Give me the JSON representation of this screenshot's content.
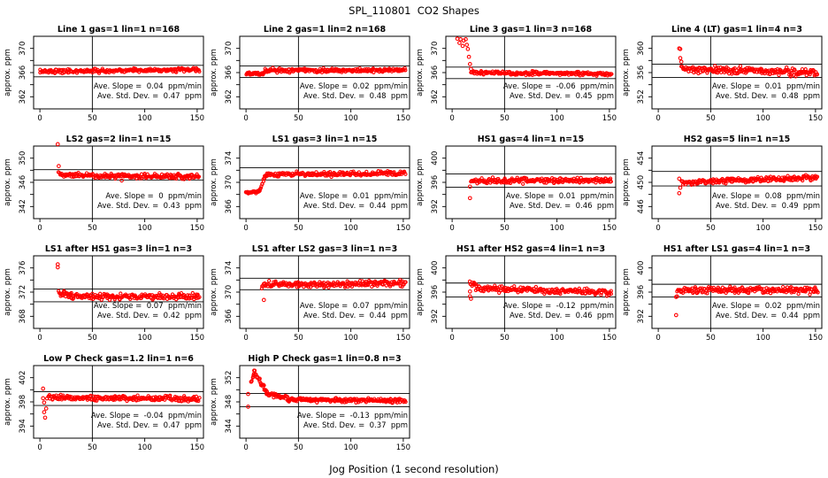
{
  "chart_data": {
    "type": "scatter",
    "title": "SPL_110801  CO2 Shapes",
    "xlabel": "Jog Position (1 second resolution)",
    "ylabel": "approx. ppm",
    "marker_color": "#ff0000",
    "axis_color": "#000000",
    "grid": false,
    "xticks": [
      0,
      50,
      100,
      150
    ],
    "xlim": [
      -6,
      156
    ],
    "vline_x": 50,
    "panels": [
      {
        "title": "Line 1 gas=1 lin=1 n=168",
        "yticks": [
          362,
          366,
          370
        ],
        "ylim": [
          360,
          372
        ],
        "hlines": [
          367.2,
          365.3
        ],
        "baseline_ppm": 366.3,
        "slope_ppm_per_min": 0.04,
        "std_dev_ppm": 0.47,
        "annotations": [
          "Ave. Slope =  0.04  ppm/min",
          "Ave. Std. Dev. =  0.47  ppm"
        ],
        "segments": [
          [
            0,
            152,
            366.2,
            366.45,
            230,
            0.22
          ]
        ],
        "outliers": []
      },
      {
        "title": "Line 2 gas=1 lin=2 n=168",
        "yticks": [
          362,
          366,
          370
        ],
        "ylim": [
          360,
          372
        ],
        "hlines": [
          367.1,
          365.2
        ],
        "baseline_ppm": 366.3,
        "slope_ppm_per_min": 0.02,
        "std_dev_ppm": 0.48,
        "annotations": [
          "Ave. Slope =  0.02  ppm/min",
          "Ave. Std. Dev. =  0.48  ppm"
        ],
        "segments": [
          [
            0,
            18,
            365.8,
            365.9,
            34,
            0.2
          ],
          [
            18,
            152,
            366.35,
            366.4,
            215,
            0.22
          ]
        ],
        "outliers": []
      },
      {
        "title": "Line 3 gas=1 lin=3 n=168",
        "yticks": [
          362,
          366,
          370
        ],
        "ylim": [
          360,
          372
        ],
        "hlines": [
          366.9,
          365.0
        ],
        "baseline_ppm": 365.9,
        "slope_ppm_per_min": -0.06,
        "std_dev_ppm": 0.45,
        "annotations": [
          "Ave. Slope =  -0.06  ppm/min",
          "Ave. Std. Dev. =  0.45  ppm"
        ],
        "segments": [
          [
            18,
            152,
            366.0,
            365.8,
            220,
            0.2
          ]
        ],
        "outliers": [
          [
            5,
            371.6
          ],
          [
            7,
            370.9
          ],
          [
            8,
            371.5
          ],
          [
            10,
            370.4
          ],
          [
            11,
            371.3
          ],
          [
            13,
            371.5
          ],
          [
            14,
            370.6
          ],
          [
            15,
            369.9
          ],
          [
            16,
            368.6
          ],
          [
            17,
            367.4
          ],
          [
            18,
            366.6
          ]
        ]
      },
      {
        "title": "Line 4 (LT) gas=1 lin=4 n=3",
        "yticks": [
          352,
          356,
          360
        ],
        "ylim": [
          350,
          362
        ],
        "hlines": [
          357.4,
          355.2
        ],
        "baseline_ppm": 356.3,
        "slope_ppm_per_min": 0.01,
        "std_dev_ppm": 0.48,
        "annotations": [
          "Ave. Slope =  0.01  ppm/min",
          "Ave. Std. Dev. =  0.48  ppm"
        ],
        "segments": [
          [
            22,
            152,
            356.6,
            356.0,
            205,
            0.45
          ]
        ],
        "outliers": [
          [
            20,
            360.0
          ],
          [
            21,
            359.9
          ],
          [
            21,
            358.4
          ],
          [
            22,
            357.8
          ]
        ]
      },
      {
        "title": "LS2 gas=2 lin=1 n=15",
        "yticks": [
          342,
          346,
          350
        ],
        "ylim": [
          340,
          352
        ],
        "hlines": [
          348.1,
          346.4
        ],
        "baseline_ppm": 347.0,
        "slope_ppm_per_min": 0,
        "std_dev_ppm": 0.43,
        "annotations": [
          "Ave. Slope =  0  ppm/min",
          "Ave. Std. Dev. =  0.43  ppm"
        ],
        "segments": [
          [
            18,
            152,
            347.2,
            346.9,
            205,
            0.28
          ]
        ],
        "outliers": [
          [
            17,
            352.3
          ],
          [
            18,
            348.7
          ],
          [
            78,
            346.3
          ]
        ]
      },
      {
        "title": "LS1 gas=3 lin=1 n=15",
        "yticks": [
          366,
          370,
          374
        ],
        "ylim": [
          364,
          376
        ],
        "hlines": [
          372.4,
          370.4
        ],
        "baseline_ppm": 371.4,
        "slope_ppm_per_min": 0.01,
        "std_dev_ppm": 0.44,
        "annotations": [
          "Ave. Slope =  0.01  ppm/min",
          "Ave. Std. Dev. =  0.44  ppm"
        ],
        "segments": [
          [
            0,
            13,
            368.3,
            368.5,
            28,
            0.18
          ],
          [
            13,
            18,
            368.6,
            371.1,
            10,
            0.15
          ],
          [
            18,
            152,
            371.3,
            371.5,
            205,
            0.28
          ]
        ],
        "outliers": []
      },
      {
        "title": "HS1 gas=4 lin=1 n=15",
        "yticks": [
          392,
          396,
          400
        ],
        "ylim": [
          390,
          402
        ],
        "hlines": [
          397.4,
          395.2
        ],
        "baseline_ppm": 396.3,
        "slope_ppm_per_min": 0.01,
        "std_dev_ppm": 0.46,
        "annotations": [
          "Ave. Slope =  0.01  ppm/min",
          "Ave. Std. Dev. =  0.46  ppm"
        ],
        "segments": [
          [
            18,
            152,
            396.3,
            396.35,
            215,
            0.3
          ]
        ],
        "outliers": [
          [
            17,
            393.4
          ],
          [
            17,
            395.3
          ]
        ]
      },
      {
        "title": "HS2 gas=5 lin=1 n=15",
        "yticks": [
          446,
          450,
          454
        ],
        "ylim": [
          444,
          456
        ],
        "hlines": [
          451.8,
          449.4
        ],
        "baseline_ppm": 450.5,
        "slope_ppm_per_min": 0.08,
        "std_dev_ppm": 0.49,
        "annotations": [
          "Ave. Slope =  0.08  ppm/min",
          "Ave. Std. Dev. =  0.49  ppm"
        ],
        "segments": [
          [
            22,
            152,
            450.0,
            450.8,
            205,
            0.3
          ]
        ],
        "outliers": [
          [
            20,
            450.6
          ],
          [
            20,
            448.2
          ],
          [
            21,
            449.1
          ]
        ]
      },
      {
        "title": "LS1 after HS1 gas=3 lin=1 n=3",
        "yticks": [
          368,
          372,
          376
        ],
        "ylim": [
          366,
          378
        ],
        "hlines": [
          372.5,
          370.4
        ],
        "baseline_ppm": 371.3,
        "slope_ppm_per_min": 0.07,
        "std_dev_ppm": 0.42,
        "annotations": [
          "Ave. Slope =  0.07  ppm/min",
          "Ave. Std. Dev. =  0.42  ppm"
        ],
        "segments": [
          [
            18,
            30,
            371.8,
            371.3,
            25,
            0.4
          ],
          [
            30,
            152,
            371.3,
            371.2,
            185,
            0.35
          ]
        ],
        "outliers": [
          [
            17,
            376.6
          ],
          [
            17,
            376.1
          ]
        ]
      },
      {
        "title": "LS1 after LS2 gas=3 lin=1 n=3",
        "yticks": [
          366,
          370,
          374
        ],
        "ylim": [
          364,
          376
        ],
        "hlines": [
          372.3,
          370.4
        ],
        "baseline_ppm": 371.3,
        "slope_ppm_per_min": 0.07,
        "std_dev_ppm": 0.44,
        "annotations": [
          "Ave. Slope =  0.07  ppm/min",
          "Ave. Std. Dev. =  0.44  ppm"
        ],
        "segments": [
          [
            15,
            152,
            371.2,
            371.5,
            205,
            0.35
          ]
        ],
        "outliers": [
          [
            17,
            368.7
          ]
        ]
      },
      {
        "title": "HS1 after HS2 gas=4 lin=1 n=3",
        "yticks": [
          392,
          396,
          400
        ],
        "ylim": [
          390,
          402
        ],
        "hlines": [
          397.5,
          395.2
        ],
        "baseline_ppm": 396.3,
        "slope_ppm_per_min": -0.12,
        "std_dev_ppm": 0.46,
        "annotations": [
          "Ave. Slope =  -0.12  ppm/min",
          "Ave. Std. Dev. =  0.46  ppm"
        ],
        "segments": [
          [
            17,
            23,
            397.5,
            397.3,
            12,
            0.3
          ],
          [
            23,
            152,
            396.6,
            396.0,
            195,
            0.35
          ]
        ],
        "outliers": [
          [
            17,
            396.1
          ],
          [
            17,
            395.3
          ],
          [
            18,
            394.9
          ]
        ]
      },
      {
        "title": "HS1 after LS1 gas=4 lin=1 n=3",
        "yticks": [
          392,
          396,
          400
        ],
        "ylim": [
          390,
          402
        ],
        "hlines": [
          397.3,
          395.2
        ],
        "baseline_ppm": 396.3,
        "slope_ppm_per_min": 0.02,
        "std_dev_ppm": 0.44,
        "annotations": [
          "Ave. Slope =  0.02  ppm/min",
          "Ave. Std. Dev. =  0.44  ppm"
        ],
        "segments": [
          [
            18,
            152,
            396.3,
            396.35,
            205,
            0.4
          ]
        ],
        "outliers": [
          [
            17,
            392.2
          ],
          [
            17,
            395.2
          ],
          [
            18,
            395.3
          ]
        ]
      },
      {
        "title": "Low P Check gas=1.2 lin=1 n=6",
        "yticks": [
          394,
          398,
          402
        ],
        "ylim": [
          392,
          404
        ],
        "hlines": [
          399.7,
          397.4
        ],
        "baseline_ppm": 398.6,
        "slope_ppm_per_min": -0.04,
        "std_dev_ppm": 0.47,
        "annotations": [
          "Ave. Slope =  -0.04  ppm/min",
          "Ave. Std. Dev. =  0.47  ppm"
        ],
        "segments": [
          [
            7,
            152,
            398.7,
            398.5,
            215,
            0.3
          ]
        ],
        "outliers": [
          [
            3,
            400.2
          ],
          [
            3,
            398.6
          ],
          [
            4,
            397.9
          ],
          [
            4,
            396.3
          ],
          [
            5,
            395.4
          ],
          [
            6,
            396.9
          ]
        ]
      },
      {
        "title": "High P Check gas=1 lin=0.8 n=3",
        "yticks": [
          344,
          348,
          352
        ],
        "ylim": [
          342,
          354
        ],
        "hlines": [
          349.4,
          347.2
        ],
        "baseline_ppm": 348.3,
        "slope_ppm_per_min": -0.13,
        "std_dev_ppm": 0.37,
        "annotations": [
          "Ave. Slope =  -0.13  ppm/min",
          "Ave. Std. Dev. =  0.37  ppm"
        ],
        "segments": [
          [
            5,
            8,
            351.3,
            352.9,
            8,
            0.25
          ],
          [
            8,
            20,
            352.9,
            349.5,
            26,
            0.3
          ],
          [
            20,
            40,
            349.4,
            348.5,
            36,
            0.25
          ],
          [
            40,
            152,
            348.4,
            348.2,
            185,
            0.25
          ]
        ],
        "outliers": [
          [
            2,
            349.3
          ],
          [
            2,
            347.2
          ]
        ]
      }
    ]
  }
}
